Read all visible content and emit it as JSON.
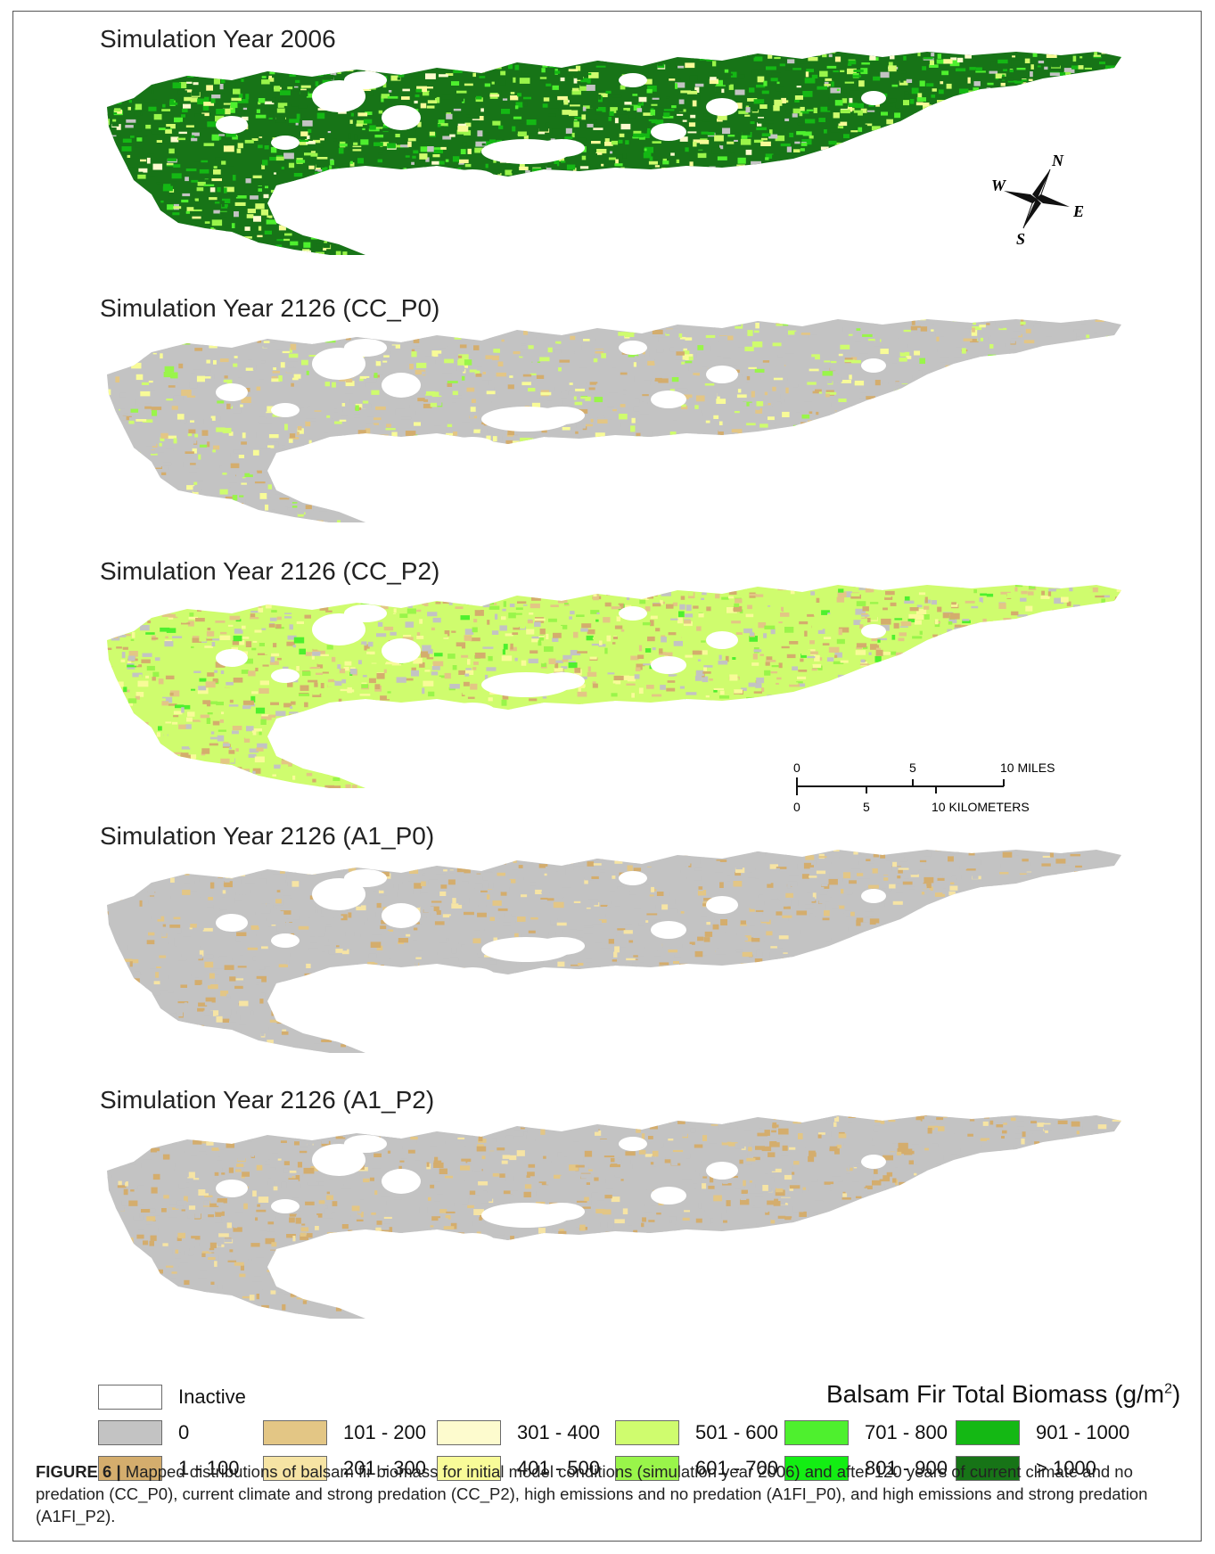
{
  "panels": [
    {
      "title": "Simulation Year 2006",
      "palette": "initial"
    },
    {
      "title": "Simulation Year 2126 (CC_P0)",
      "palette": "cc_p0"
    },
    {
      "title": "Simulation Year 2126 (CC_P2)",
      "palette": "cc_p2"
    },
    {
      "title": "Simulation Year 2126 (A1_P0)",
      "palette": "a1_p0"
    },
    {
      "title": "Simulation Year 2126 (A1_P2)",
      "palette": "a1_p2"
    }
  ],
  "compass": {
    "n": "N",
    "s": "S",
    "e": "E",
    "w": "W"
  },
  "scalebar": {
    "miles_ticks": [
      "0",
      "5",
      "10 MILES"
    ],
    "km_ticks": [
      "0",
      "5",
      "10 KILOMETERS"
    ]
  },
  "legend": {
    "title": "Balsam Fir Total Biomass (g/m",
    "title_sup": "2",
    "title_end": ")",
    "inactive_label": "Inactive",
    "inactive_color": "#ffffff",
    "classes": [
      {
        "label": "0",
        "color": "#c3c3c3"
      },
      {
        "label": "1 - 100",
        "color": "#d4ad6d"
      },
      {
        "label": "101 - 200",
        "color": "#e3c685"
      },
      {
        "label": "201 - 300",
        "color": "#f6e4a4"
      },
      {
        "label": "301 - 400",
        "color": "#fdfbce"
      },
      {
        "label": "401 - 500",
        "color": "#f8fb98"
      },
      {
        "label": "501 - 600",
        "color": "#cffc6e"
      },
      {
        "label": "601 - 700",
        "color": "#99f54a"
      },
      {
        "label": "701 - 800",
        "color": "#4ef02e"
      },
      {
        "label": "801 - 900",
        "color": "#13ee13"
      },
      {
        "label": "901 - 1000",
        "color": "#14b814"
      },
      {
        "label": "> 1000",
        "color": "#177417"
      }
    ]
  },
  "caption": {
    "label": "FIGURE 6 |",
    "text": " Mapped distributions of balsam fir biomass for initial model conditions (simulation year 2006) and after 120 years of current climate and no predation (CC_P0), current climate and strong predation (CC_P2), high emissions and no predation (A1FI_P0), and high emissions and strong predation (A1FI_P2)."
  }
}
